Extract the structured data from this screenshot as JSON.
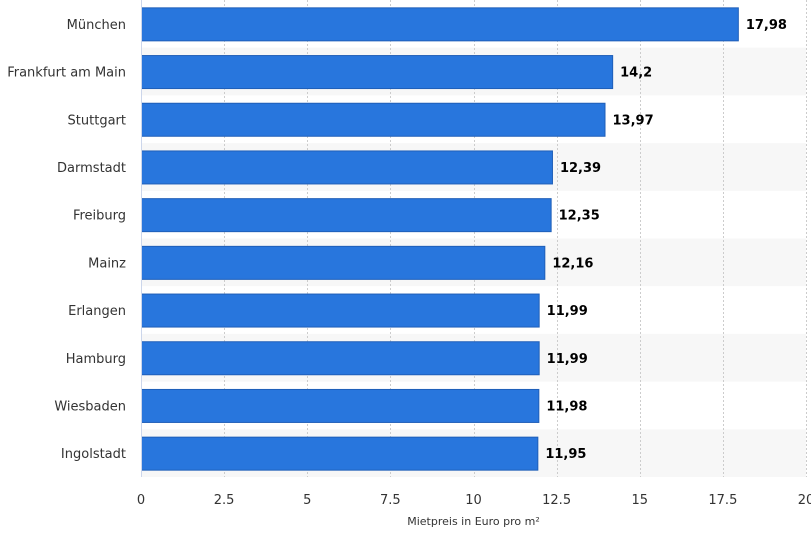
{
  "chart_data": {
    "type": "bar",
    "orientation": "horizontal",
    "categories": [
      "München",
      "Frankfurt am Main",
      "Stuttgart",
      "Darmstadt",
      "Freiburg",
      "Mainz",
      "Erlangen",
      "Hamburg",
      "Wiesbaden",
      "Ingolstadt"
    ],
    "values": [
      17.98,
      14.2,
      13.97,
      12.39,
      12.35,
      12.16,
      11.99,
      11.99,
      11.98,
      11.95
    ],
    "value_labels": [
      "17,98",
      "14,2",
      "13,97",
      "12,39",
      "12,35",
      "12,16",
      "11,99",
      "11,99",
      "11,98",
      "11,95"
    ],
    "xlabel": "Mietpreis in Euro pro m²",
    "ylabel": "",
    "xlim": [
      0,
      20
    ],
    "xticks": [
      0,
      2.5,
      5,
      7.5,
      10,
      12.5,
      15,
      17.5,
      20
    ],
    "xtick_labels": [
      "0",
      "2.5",
      "5",
      "7.5",
      "10",
      "12.5",
      "15",
      "17.5",
      "20"
    ],
    "grid": true,
    "bar_color": "#2876dd",
    "bar_border_color": "#1f5fb8",
    "band_color": "#f7f7f7",
    "grid_color": "#cccccc"
  }
}
